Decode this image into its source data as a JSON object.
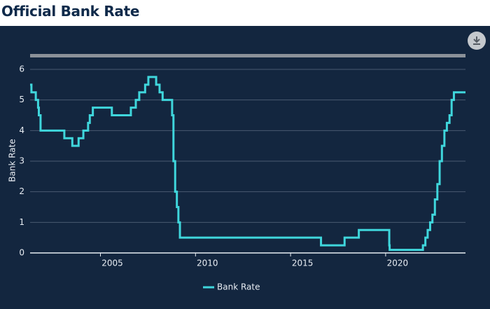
{
  "chart_data": {
    "type": "line",
    "title": "Official Bank Rate",
    "y_label": "Bank Rate",
    "line_shape": "hv",
    "grid": true,
    "legend": "bottom",
    "x": [
      2001.3,
      2001.37,
      2001.6,
      2001.72,
      2001.76,
      2001.85,
      2003.1,
      2003.52,
      2003.85,
      2004.1,
      2004.35,
      2004.44,
      2004.6,
      2005.6,
      2006.6,
      2006.86,
      2007.04,
      2007.35,
      2007.52,
      2007.93,
      2008.11,
      2008.27,
      2008.77,
      2008.84,
      2008.93,
      2009.02,
      2009.1,
      2009.18,
      2016.6,
      2017.84,
      2018.59,
      2020.19,
      2020.21,
      2021.96,
      2022.09,
      2022.21,
      2022.34,
      2022.46,
      2022.59,
      2022.72,
      2022.84,
      2022.96,
      2023.09,
      2023.22,
      2023.36,
      2023.47,
      2023.59,
      2024.2
    ],
    "series": [
      {
        "name": "Bank Rate",
        "color": "#3fd6dc",
        "values": [
          5.5,
          5.25,
          5.0,
          4.75,
          4.5,
          4.0,
          3.75,
          3.5,
          3.75,
          4.0,
          4.25,
          4.5,
          4.75,
          4.5,
          4.75,
          5.0,
          5.25,
          5.5,
          5.75,
          5.5,
          5.25,
          5.0,
          4.5,
          3.0,
          2.0,
          1.5,
          1.0,
          0.5,
          0.25,
          0.5,
          0.75,
          0.25,
          0.1,
          0.25,
          0.5,
          0.75,
          1.0,
          1.25,
          1.75,
          2.25,
          3.0,
          3.5,
          4.0,
          4.25,
          4.5,
          5.0,
          5.25,
          5.25
        ]
      }
    ],
    "xlim": [
      2001.3,
      2024.2
    ],
    "xticks": [
      2005,
      2010,
      2015,
      2020
    ],
    "ylim": [
      0,
      6
    ],
    "yticks": [
      0,
      1,
      2,
      3,
      4,
      5,
      6
    ]
  }
}
